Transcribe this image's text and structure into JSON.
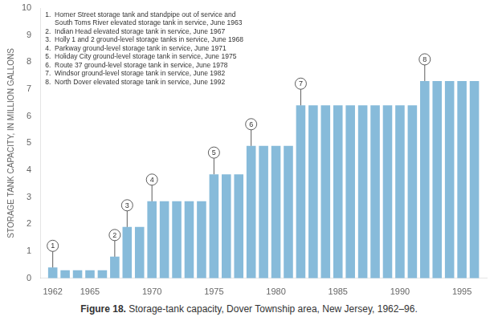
{
  "chart_data": {
    "type": "bar",
    "x": [
      1962,
      1963,
      1964,
      1965,
      1966,
      1967,
      1968,
      1969,
      1970,
      1971,
      1972,
      1973,
      1974,
      1975,
      1976,
      1977,
      1978,
      1979,
      1980,
      1981,
      1982,
      1983,
      1984,
      1985,
      1986,
      1987,
      1988,
      1989,
      1990,
      1991,
      1992,
      1993,
      1994,
      1995,
      1996
    ],
    "values": [
      0.4,
      0.3,
      0.3,
      0.3,
      0.3,
      0.8,
      1.9,
      1.9,
      2.85,
      2.85,
      2.85,
      2.85,
      2.85,
      3.85,
      3.85,
      3.85,
      4.9,
      4.9,
      4.9,
      4.9,
      6.4,
      6.4,
      6.4,
      6.4,
      6.4,
      6.4,
      6.4,
      6.4,
      6.4,
      6.4,
      7.3,
      7.3,
      7.3,
      7.3,
      7.3
    ],
    "color": "#87BBDA",
    "xlim": [
      1961,
      1997
    ],
    "xticks": [
      1962,
      1965,
      1970,
      1975,
      1980,
      1985,
      1990,
      1995
    ],
    "ylim": [
      0,
      10
    ],
    "yticks": [
      0,
      1,
      2,
      3,
      4,
      5,
      6,
      7,
      8,
      9,
      10
    ],
    "ylabel": "STORAGE TANK CAPACITY, IN MILLION GALLONS",
    "grid": false,
    "annotations": [
      {
        "label": "1",
        "x": 1962,
        "y": 0.4
      },
      {
        "label": "2",
        "x": 1967,
        "y": 0.8
      },
      {
        "label": "3",
        "x": 1968,
        "y": 1.9
      },
      {
        "label": "4",
        "x": 1970,
        "y": 2.85
      },
      {
        "label": "5",
        "x": 1975,
        "y": 3.85
      },
      {
        "label": "6",
        "x": 1978,
        "y": 4.9
      },
      {
        "label": "7",
        "x": 1982,
        "y": 6.4
      },
      {
        "label": "8",
        "x": 1992,
        "y": 7.3
      }
    ],
    "notes": [
      "1.  Horner Street storage tank and standpipe out of service and",
      "     South Toms River elevated storage tank in service, June 1963",
      "2.  Indian Head elevated storage tank in service, June 1967",
      "3.  Holly 1 and 2 ground-level storage tanks in service, June 1968",
      "4.  Parkway ground-level storage tank in service, June 1971",
      "5.  Holiday City ground-level storage tank in service, June 1975",
      "6.  Route 37 ground-level storage tank in service, June 1978",
      "7.  Windsor ground-level storage tank in service, June 1982",
      "8.  North Dover elevated storage tank in service, June 1992"
    ],
    "caption": "Figure 18.",
    "caption_text": "Storage-tank capacity, Dover Township area, New Jersey, 1962–96."
  }
}
